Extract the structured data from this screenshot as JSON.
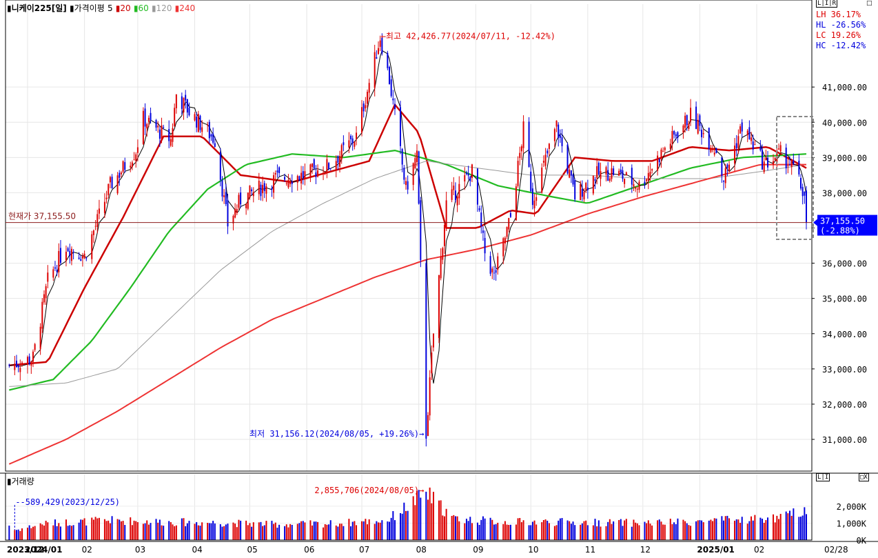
{
  "header": {
    "title": "니케이225[일]",
    "indicator_label": "가격이평",
    "ma_values": [
      "5",
      "20",
      "60",
      "120",
      "240"
    ]
  },
  "stats": {
    "lh": "LH  36.17%",
    "hl": "HL -26.56%",
    "lc": "LC  19.26%",
    "hc": "HC -12.42%"
  },
  "icons": {
    "top_right": "L|I|R",
    "top_right_corner": "□",
    "volume_left": "L|I",
    "volume_right": "□X"
  },
  "volume_title": "거래량",
  "colors": {
    "up": "#dd0000",
    "down": "#0000dd",
    "ma5": "#000000",
    "ma20": "#cc0000",
    "ma60": "#22bb22",
    "ma120": "#999999",
    "ma240": "#ee3333",
    "price_line": "#8b1a1a",
    "badge": "#0000ff"
  },
  "annotations": {
    "high": "←최고 42,426.77(2024/07/11, -12.42%)",
    "low": "최저 31,156.12(2024/08/05, +19.26%)→",
    "current": "현재가 37,155.50",
    "badge_price": "37,155.50",
    "badge_pct": "(-2.88%)",
    "vol_max": "2,855,706(2024/08/05)→",
    "vol_min": "--589,429(2023/12/25)"
  },
  "chart_data": {
    "type": "candlestick",
    "instrument": "니케이225",
    "period": "일",
    "y_ticks": [
      "41,000.00",
      "40,000.00",
      "39,000.00",
      "38,000.00",
      "37,000.00",
      "36,000.00",
      "35,000.00",
      "34,000.00",
      "33,000.00",
      "32,000.00",
      "31,000.00"
    ],
    "y_tick_values": [
      41000,
      40000,
      39000,
      38000,
      37000,
      36000,
      35000,
      34000,
      33000,
      32000,
      31000
    ],
    "ylim": [
      30100,
      43000
    ],
    "x_labels": [
      "2023/12",
      "2024/01",
      "02",
      "03",
      "04",
      "05",
      "06",
      "07",
      "08",
      "09",
      "10",
      "11",
      "12",
      "2025/01",
      "02"
    ],
    "x_last_label": "02/28",
    "price_path": [
      [
        "2023-12-22",
        33100
      ],
      [
        "2024-01-04",
        33300
      ],
      [
        "2024-01-12",
        35500
      ],
      [
        "2024-01-22",
        36500
      ],
      [
        "2024-02-01",
        36200
      ],
      [
        "2024-02-15",
        38200
      ],
      [
        "2024-02-29",
        39200
      ],
      [
        "2024-03-04",
        40100
      ],
      [
        "2024-03-19",
        39500
      ],
      [
        "2024-03-22",
        40800
      ],
      [
        "2024-03-29",
        40300
      ],
      [
        "2024-04-12",
        39500
      ],
      [
        "2024-04-19",
        37100
      ],
      [
        "2024-04-26",
        37800
      ],
      [
        "2024-05-15",
        38400
      ],
      [
        "2024-05-31",
        38500
      ],
      [
        "2024-06-14",
        38800
      ],
      [
        "2024-06-28",
        39600
      ],
      [
        "2024-07-11",
        42426.77
      ],
      [
        "2024-07-16",
        41200
      ],
      [
        "2024-07-25",
        38100
      ],
      [
        "2024-07-31",
        39100
      ],
      [
        "2024-08-02",
        35900
      ],
      [
        "2024-08-05",
        31156.12
      ],
      [
        "2024-08-09",
        34000
      ],
      [
        "2024-08-16",
        37700
      ],
      [
        "2024-08-30",
        38600
      ],
      [
        "2024-09-06",
        36300
      ],
      [
        "2024-09-11",
        35600
      ],
      [
        "2024-09-20",
        37300
      ],
      [
        "2024-09-27",
        39800
      ],
      [
        "2024-10-02",
        37800
      ],
      [
        "2024-10-15",
        39900
      ],
      [
        "2024-10-25",
        37900
      ],
      [
        "2024-11-05",
        38500
      ],
      [
        "2024-11-15",
        38600
      ],
      [
        "2024-11-29",
        38200
      ],
      [
        "2024-12-12",
        39200
      ],
      [
        "2024-12-27",
        40200
      ],
      [
        "2025-01-10",
        39200
      ],
      [
        "2025-01-14",
        38400
      ],
      [
        "2025-01-24",
        39900
      ],
      [
        "2025-02-05",
        38800
      ],
      [
        "2025-02-14",
        39100
      ],
      [
        "2025-02-21",
        38700
      ],
      [
        "2025-02-27",
        37900
      ],
      [
        "2025-02-28",
        37155.5
      ]
    ],
    "moving_averages": [
      {
        "period": "20",
        "points": [
          [
            "2023-12-22",
            33100
          ],
          [
            "2024-01-12",
            33200
          ],
          [
            "2024-02-01",
            35300
          ],
          [
            "2024-02-22",
            37300
          ],
          [
            "2024-03-15",
            39600
          ],
          [
            "2024-04-05",
            39600
          ],
          [
            "2024-04-26",
            38500
          ],
          [
            "2024-05-24",
            38300
          ],
          [
            "2024-06-21",
            38700
          ],
          [
            "2024-07-05",
            38900
          ],
          [
            "2024-07-19",
            40500
          ],
          [
            "2024-08-01",
            39700
          ],
          [
            "2024-08-16",
            37000
          ],
          [
            "2024-09-02",
            37000
          ],
          [
            "2024-09-20",
            37500
          ],
          [
            "2024-10-04",
            37400
          ],
          [
            "2024-10-25",
            39000
          ],
          [
            "2024-11-15",
            38900
          ],
          [
            "2024-12-06",
            38900
          ],
          [
            "2024-12-27",
            39300
          ],
          [
            "2025-01-17",
            39200
          ],
          [
            "2025-02-07",
            39300
          ],
          [
            "2025-02-28",
            38700
          ]
        ]
      },
      {
        "period": "60",
        "points": [
          [
            "2023-12-22",
            32400
          ],
          [
            "2024-01-15",
            32700
          ],
          [
            "2024-02-05",
            33800
          ],
          [
            "2024-02-26",
            35300
          ],
          [
            "2024-03-18",
            36900
          ],
          [
            "2024-04-08",
            38100
          ],
          [
            "2024-04-29",
            38800
          ],
          [
            "2024-05-24",
            39100
          ],
          [
            "2024-06-21",
            39000
          ],
          [
            "2024-07-19",
            39200
          ],
          [
            "2024-08-16",
            38800
          ],
          [
            "2024-09-13",
            38200
          ],
          [
            "2024-10-11",
            37900
          ],
          [
            "2024-11-01",
            37700
          ],
          [
            "2024-11-29",
            38200
          ],
          [
            "2024-12-27",
            38700
          ],
          [
            "2025-01-24",
            39000
          ],
          [
            "2025-02-28",
            39100
          ]
        ]
      },
      {
        "period": "120",
        "points": [
          [
            "2023-12-22",
            32500
          ],
          [
            "2024-01-22",
            32600
          ],
          [
            "2024-02-19",
            33000
          ],
          [
            "2024-03-18",
            34400
          ],
          [
            "2024-04-15",
            35800
          ],
          [
            "2024-05-13",
            36900
          ],
          [
            "2024-06-10",
            37700
          ],
          [
            "2024-07-08",
            38400
          ],
          [
            "2024-08-05",
            38900
          ],
          [
            "2024-09-02",
            38700
          ],
          [
            "2024-10-01",
            38500
          ],
          [
            "2024-11-01",
            38500
          ],
          [
            "2024-12-02",
            38400
          ],
          [
            "2025-01-06",
            38400
          ],
          [
            "2025-02-03",
            38600
          ],
          [
            "2025-02-28",
            38800
          ]
        ]
      },
      {
        "period": "240",
        "points": [
          [
            "2023-12-22",
            30300
          ],
          [
            "2024-01-22",
            31000
          ],
          [
            "2024-02-19",
            31800
          ],
          [
            "2024-03-18",
            32700
          ],
          [
            "2024-04-15",
            33600
          ],
          [
            "2024-05-13",
            34400
          ],
          [
            "2024-06-10",
            35000
          ],
          [
            "2024-07-08",
            35600
          ],
          [
            "2024-08-05",
            36100
          ],
          [
            "2024-09-02",
            36400
          ],
          [
            "2024-10-01",
            36800
          ],
          [
            "2024-11-01",
            37400
          ],
          [
            "2024-12-02",
            37900
          ],
          [
            "2025-01-06",
            38400
          ],
          [
            "2025-02-03",
            38800
          ],
          [
            "2025-02-28",
            38800
          ]
        ]
      }
    ],
    "current_price": 37155.5,
    "volume_ticks": [
      "2,000K",
      "1,000K",
      "0K"
    ],
    "volume_tick_values": [
      2000,
      1000,
      0
    ],
    "volume_ylim": [
      0,
      3300
    ],
    "volume_path_k": [
      [
        "2023-12-22",
        900
      ],
      [
        "2023-12-25",
        589.429
      ],
      [
        "2024-01-10",
        1000
      ],
      [
        "2024-02-15",
        1200
      ],
      [
        "2024-03-15",
        1100
      ],
      [
        "2024-04-15",
        1050
      ],
      [
        "2024-05-15",
        950
      ],
      [
        "2024-06-15",
        1000
      ],
      [
        "2024-07-15",
        1200
      ],
      [
        "2024-08-05",
        2855.706
      ],
      [
        "2024-08-20",
        1300
      ],
      [
        "2024-09-15",
        1100
      ],
      [
        "2024-10-15",
        1100
      ],
      [
        "2024-11-15",
        1050
      ],
      [
        "2024-12-15",
        1050
      ],
      [
        "2025-01-15",
        1200
      ],
      [
        "2025-02-15",
        1350
      ],
      [
        "2025-02-28",
        1900
      ]
    ]
  }
}
